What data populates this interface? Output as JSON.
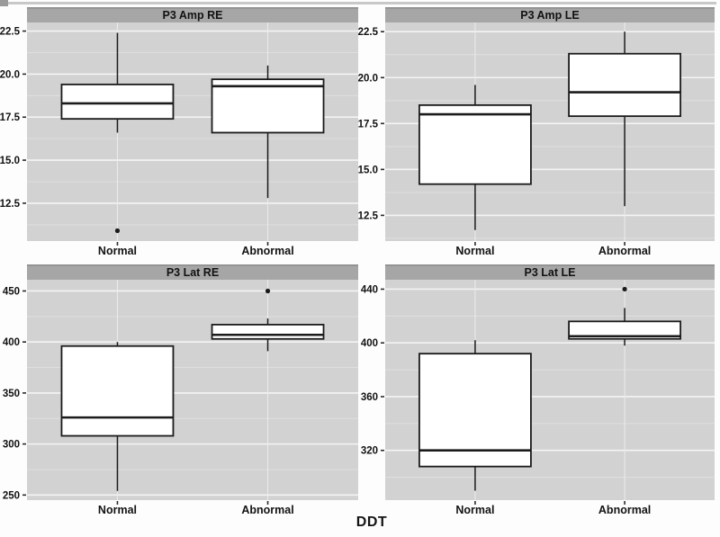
{
  "figure": {
    "x_axis_title": "DDT",
    "x_categories": [
      "Normal",
      "Abnormal"
    ]
  },
  "colors": {
    "outer_bg": "#fdfdfd",
    "panel_bg": "#d2d2d2",
    "strip_bg": "#a6a6a6",
    "strip_edge": "#8d8d8d",
    "grid_major": "#f4f4f4",
    "grid_minor": "#dfdfdf",
    "grid_vertical": "#ececec",
    "box_fill": "#ffffff",
    "box_stroke": "#1b1b1b",
    "tick_mark": "#2b2b2b",
    "text": "#121212",
    "scan_line": "#b5b5b5",
    "scan_blob": "#9a9a9a"
  },
  "chart_data": [
    {
      "type": "box",
      "title": "P3 Amp RE",
      "categories": [
        "Normal",
        "Abnormal"
      ],
      "ylim": [
        10.3,
        23.0
      ],
      "yticks": [
        12.5,
        15.0,
        17.5,
        20.0,
        22.5
      ],
      "ytick_labels": [
        "12.5",
        "15.0",
        "17.5",
        "20.0",
        "22.5"
      ],
      "series": [
        {
          "category": "Normal",
          "whisker_low": 16.6,
          "q1": 17.4,
          "median": 18.3,
          "q3": 19.4,
          "whisker_high": 22.4,
          "outliers": [
            10.9
          ]
        },
        {
          "category": "Abnormal",
          "whisker_low": 12.8,
          "q1": 16.6,
          "median": 19.3,
          "q3": 19.7,
          "whisker_high": 20.5,
          "outliers": []
        }
      ]
    },
    {
      "type": "box",
      "title": "P3 Amp LE",
      "categories": [
        "Normal",
        "Abnormal"
      ],
      "ylim": [
        11.1,
        23.0
      ],
      "yticks": [
        12.5,
        15.0,
        17.5,
        20.0,
        22.5
      ],
      "ytick_labels": [
        "12.5",
        "15.0",
        "17.5",
        "20.0",
        "22.5"
      ],
      "series": [
        {
          "category": "Normal",
          "whisker_low": 11.7,
          "q1": 14.2,
          "median": 18.0,
          "q3": 18.5,
          "whisker_high": 19.6,
          "outliers": []
        },
        {
          "category": "Abnormal",
          "whisker_low": 13.0,
          "q1": 17.9,
          "median": 19.2,
          "q3": 21.3,
          "whisker_high": 22.5,
          "outliers": []
        }
      ]
    },
    {
      "type": "box",
      "title": "P3 Lat RE",
      "categories": [
        "Normal",
        "Abnormal"
      ],
      "ylim": [
        245,
        461
      ],
      "yticks": [
        250,
        300,
        350,
        400,
        450
      ],
      "ytick_labels": [
        "250",
        "300",
        "350",
        "400",
        "450"
      ],
      "series": [
        {
          "category": "Normal",
          "whisker_low": 254,
          "q1": 308,
          "median": 326,
          "q3": 396,
          "whisker_high": 400,
          "outliers": []
        },
        {
          "category": "Abnormal",
          "whisker_low": 391,
          "q1": 403,
          "median": 407,
          "q3": 417,
          "whisker_high": 423,
          "outliers": [
            450
          ]
        }
      ]
    },
    {
      "type": "box",
      "title": "P3 Lat LE",
      "categories": [
        "Normal",
        "Abnormal"
      ],
      "ylim": [
        283,
        447
      ],
      "yticks": [
        320,
        360,
        400,
        440
      ],
      "ytick_labels": [
        "320",
        "360",
        "400",
        "440"
      ],
      "series": [
        {
          "category": "Normal",
          "whisker_low": 290,
          "q1": 308,
          "median": 320,
          "q3": 392,
          "whisker_high": 402,
          "outliers": []
        },
        {
          "category": "Abnormal",
          "whisker_low": 398,
          "q1": 403,
          "median": 405,
          "q3": 416,
          "whisker_high": 426,
          "outliers": [
            440
          ]
        }
      ]
    }
  ]
}
